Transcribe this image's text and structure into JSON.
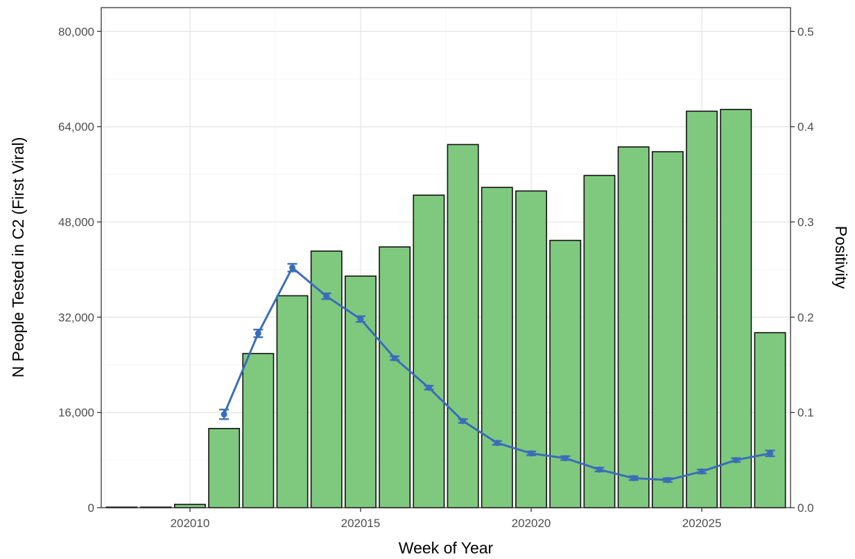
{
  "chart_data": {
    "type": "bar",
    "title": "",
    "xlabel": "Week of Year",
    "ylabel": "N People Tested in C2 (First Viral)",
    "y2label": "Positivity",
    "xlim": [
      202007.4,
      202027.6
    ],
    "ylim": [
      0,
      84000
    ],
    "y2lim": [
      0,
      0.525
    ],
    "x_ticks": [
      202010,
      202015,
      202020,
      202025
    ],
    "y_ticks": [
      0,
      16000,
      32000,
      48000,
      64000,
      80000
    ],
    "y_tick_labels": [
      "0",
      "16,000",
      "32,000",
      "48,000",
      "64,000",
      "80,000"
    ],
    "y2_ticks": [
      0,
      0.1,
      0.2,
      0.3,
      0.4,
      0.5
    ],
    "y2_tick_labels": [
      "0.0",
      "0.1",
      "0.2",
      "0.3",
      "0.4",
      "0.5"
    ],
    "grid": true,
    "bar_color": "#7fc97f",
    "bar_edge_color": "#111111",
    "line_color": "#3a6db8",
    "bars": {
      "x": [
        202008,
        202009,
        202010,
        202011,
        202012,
        202013,
        202014,
        202015,
        202016,
        202017,
        202018,
        202019,
        202020,
        202021,
        202022,
        202023,
        202024,
        202025,
        202026,
        202027
      ],
      "values": [
        60,
        80,
        550,
        13300,
        25900,
        35600,
        43100,
        38900,
        43800,
        52500,
        61000,
        53800,
        53200,
        44900,
        55800,
        60600,
        59800,
        66600,
        66900,
        29400
      ]
    },
    "series": [
      {
        "type": "line",
        "axis": "right",
        "x": [
          202011,
          202012,
          202013,
          202014,
          202015,
          202016,
          202017,
          202018,
          202019,
          202020,
          202021,
          202022,
          202023,
          202024,
          202025,
          202026,
          202027
        ],
        "values": [
          0.098,
          0.183,
          0.252,
          0.222,
          0.198,
          0.157,
          0.126,
          0.091,
          0.068,
          0.057,
          0.052,
          0.04,
          0.031,
          0.029,
          0.038,
          0.05,
          0.057
        ],
        "error": [
          0.005,
          0.004,
          0.004,
          0.003,
          0.003,
          0.002,
          0.002,
          0.002,
          0.002,
          0.002,
          0.002,
          0.002,
          0.002,
          0.002,
          0.002,
          0.002,
          0.003
        ]
      }
    ]
  }
}
